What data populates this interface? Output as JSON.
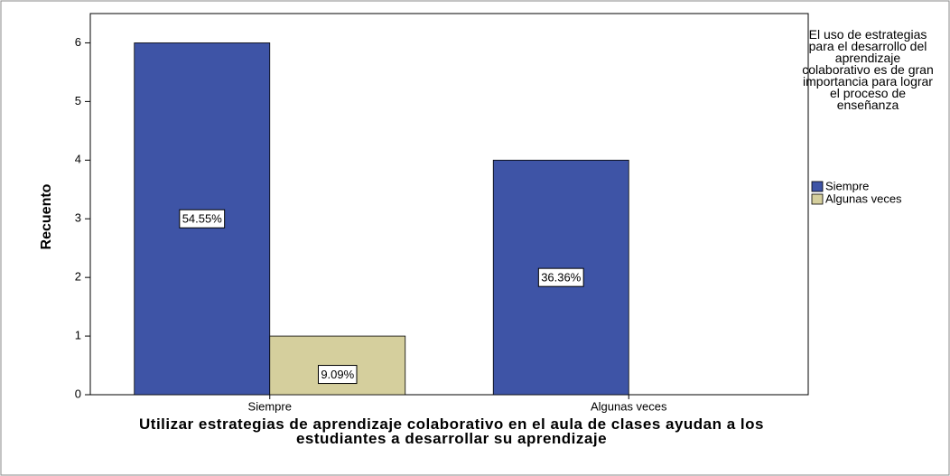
{
  "chart_data": {
    "type": "bar",
    "x_label": "Utilizar estrategias de aprendizaje colaborativo en el aula de clases ayudan a los estudiantes a desarrollar su aprendizaje",
    "y_label": "Recuento",
    "legend_title": "El uso de estrategias para el desarrollo del aprendizaje colaborativo es de gran importancia para lograr el proceso de enseñanza",
    "legend_position": "right",
    "categories": [
      "Siempre",
      "Algunas veces"
    ],
    "series": [
      {
        "name": "Siempre",
        "color": "#3e54a6",
        "values": [
          6,
          4
        ],
        "value_labels": [
          "54.55%",
          "36.36%"
        ]
      },
      {
        "name": "Algunas veces",
        "color": "#d5cf9d",
        "values": [
          1,
          0
        ],
        "value_labels": [
          "9.09%",
          null
        ]
      }
    ],
    "ylim": [
      0,
      6.5
    ],
    "yticks": [
      0,
      1,
      2,
      3,
      4,
      5,
      6
    ]
  }
}
